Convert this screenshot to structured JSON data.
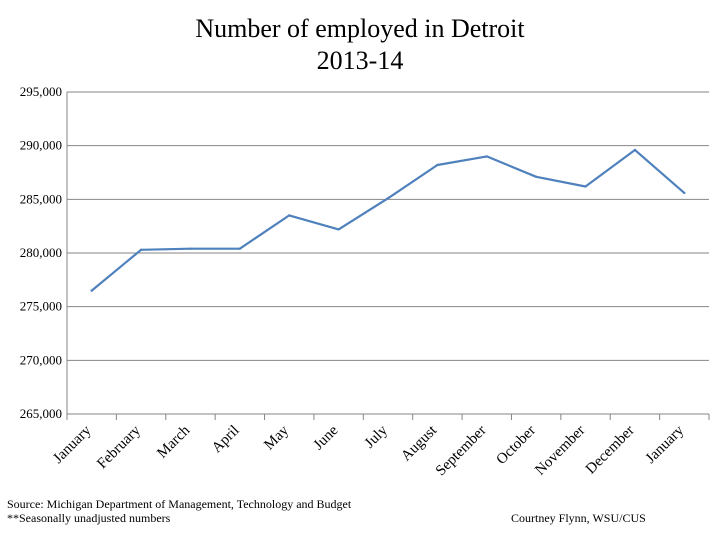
{
  "chart_data": {
    "type": "line",
    "title": "Number of employed in Detroit",
    "subtitle": "2013-14",
    "xlabel": "",
    "ylabel": "",
    "categories": [
      "January",
      "February",
      "March",
      "April",
      "May",
      "June",
      "July",
      "August",
      "September",
      "October",
      "November",
      "December",
      "January"
    ],
    "series": [
      {
        "values": [
          276500,
          280300,
          280400,
          280400,
          283500,
          282200,
          285100,
          288200,
          289000,
          287100,
          286200,
          289600,
          285600
        ]
      }
    ],
    "ylim": [
      265000,
      295000
    ],
    "yticks": [
      265000,
      270000,
      275000,
      280000,
      285000,
      290000,
      295000
    ],
    "ytick_labels": [
      "265,000",
      "270,000",
      "275,000",
      "280,000",
      "285,000",
      "290,000",
      "295,000"
    ],
    "grid": true,
    "legend": "none",
    "line_color": "#4f81bd"
  },
  "footer": {
    "source": "Source: Michigan Department of Management, Technology and Budget",
    "note": "**Seasonally unadjusted numbers",
    "credit": "Courtney Flynn, WSU/CUS"
  }
}
